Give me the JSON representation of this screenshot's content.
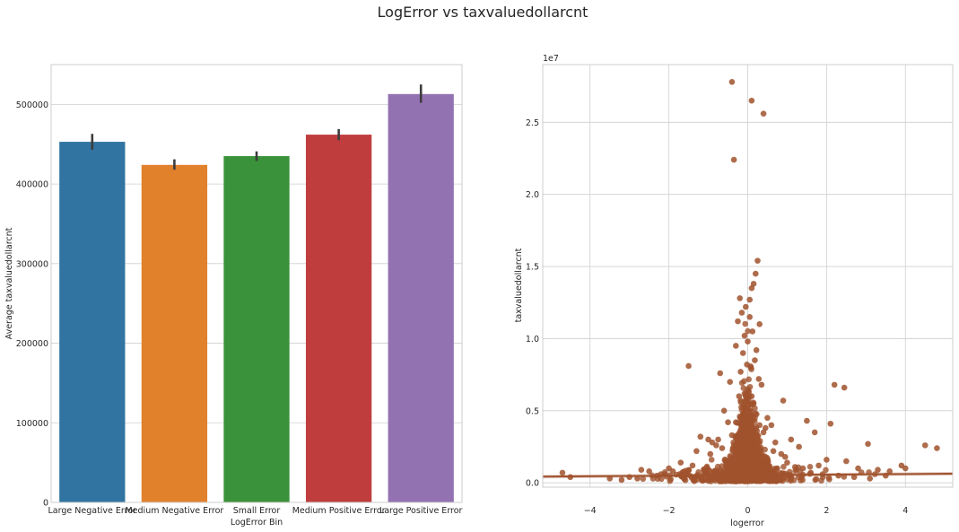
{
  "figure": {
    "title": "LogError vs taxvaluedollarcnt"
  },
  "chart_data": [
    {
      "type": "bar",
      "title": "",
      "xlabel": "LogError Bin",
      "ylabel": "Average taxvaluedollarcnt",
      "categories": [
        "Large Negative Error",
        "Medium Negative Error",
        "Small Error",
        "Medium Positive Error",
        "Large Positive Error"
      ],
      "values": [
        453000,
        424000,
        435000,
        462000,
        513000
      ],
      "error_low": [
        443000,
        418000,
        429000,
        455000,
        502000
      ],
      "error_high": [
        463000,
        431000,
        441000,
        469000,
        525000
      ],
      "colors": [
        "#3274a1",
        "#e1812c",
        "#3a923a",
        "#c03d3e",
        "#9372b2"
      ],
      "ylim": [
        0,
        550000
      ],
      "yticks": [
        0,
        100000,
        200000,
        300000,
        400000,
        500000
      ],
      "ytick_labels": [
        "0",
        "100000",
        "200000",
        "300000",
        "400000",
        "500000"
      ],
      "grid": true
    },
    {
      "type": "scatter",
      "title": "",
      "xlabel": "logerror",
      "ylabel": "taxvaluedollarcnt",
      "y_offset_label": "1e7",
      "xlim": [
        -5.2,
        5.2
      ],
      "ylim": [
        -0.03,
        2.9
      ],
      "xticks": [
        -4,
        -2,
        0,
        2,
        4
      ],
      "xtick_labels": [
        "−4",
        "−2",
        "0",
        "2",
        "4"
      ],
      "yticks": [
        0.0,
        0.5,
        1.0,
        1.5,
        2.0,
        2.5
      ],
      "ytick_labels": [
        "0.0",
        "0.5",
        "1.0",
        "1.5",
        "2.0",
        "2.5"
      ],
      "point_color": "#a0522d",
      "line_color": "#a0522d",
      "grid": true,
      "regression": {
        "x": [
          -5.2,
          5.2
        ],
        "y": [
          0.043,
          0.063
        ]
      },
      "x": [
        -0.4,
        0.1,
        0.4,
        -0.35,
        0.25,
        0.2,
        0.15,
        0.1,
        -0.2,
        0.05,
        -0.05,
        -0.15,
        0.05,
        -0.25,
        0.3,
        0.12,
        -0.08,
        0.0,
        -0.3,
        0.22,
        -0.12,
        0.18,
        -0.02,
        0.08,
        -0.18,
        0.28,
        -0.45,
        0.35,
        -0.22,
        0.02,
        -1.5,
        -0.7,
        2.2,
        2.45,
        0.9,
        -1.2,
        1.5,
        2.1,
        1.7,
        -1.0,
        0.5,
        -0.6,
        0.6,
        -0.5,
        0.45,
        -0.9,
        1.1,
        -0.8,
        1.3,
        -1.3,
        0.7,
        -0.75,
        0.85,
        3.05,
        4.5,
        4.8,
        3.9,
        4.0,
        3.3,
        3.6,
        2.8,
        2.5,
        2.0,
        1.8,
        1.2,
        -1.7,
        -2.0,
        -2.3,
        -2.5,
        -2.7,
        -3.0,
        -3.5,
        -4.5,
        -4.7,
        -2.1,
        -1.9,
        -1.4,
        -1.1,
        1.0,
        1.4,
        1.9,
        2.3,
        2.7,
        3.1,
        3.5,
        -3.2,
        -2.8,
        -2.2,
        -1.6,
        1.6,
        0.95,
        -0.95,
        0.65,
        -0.65,
        0.4,
        -0.4,
        0.3,
        -0.3,
        0.2,
        -0.2,
        0.15,
        -0.1,
        0.1,
        0.0,
        0.05,
        -0.05,
        0.25,
        -0.25,
        0.5,
        -0.55,
        0.75,
        -0.85,
        1.05,
        -1.05,
        0.35,
        -0.35,
        0.12,
        -0.12
      ],
      "y": [
        2.78,
        2.65,
        2.56,
        2.24,
        1.54,
        1.45,
        1.38,
        1.35,
        1.28,
        1.27,
        1.22,
        1.18,
        1.15,
        1.12,
        1.1,
        1.05,
        1.02,
        0.98,
        0.95,
        0.92,
        0.9,
        0.85,
        0.82,
        0.8,
        0.77,
        0.72,
        0.7,
        0.68,
        0.6,
        0.58,
        0.81,
        0.76,
        0.68,
        0.66,
        0.57,
        0.32,
        0.43,
        0.41,
        0.35,
        0.3,
        0.45,
        0.5,
        0.4,
        0.42,
        0.38,
        0.28,
        0.3,
        0.26,
        0.25,
        0.22,
        0.28,
        0.3,
        0.2,
        0.27,
        0.26,
        0.24,
        0.12,
        0.1,
        0.09,
        0.08,
        0.1,
        0.15,
        0.16,
        0.12,
        0.11,
        0.14,
        0.1,
        0.05,
        0.08,
        0.09,
        0.04,
        0.03,
        0.04,
        0.07,
        0.06,
        0.08,
        0.12,
        0.09,
        0.14,
        0.1,
        0.06,
        0.05,
        0.04,
        0.03,
        0.05,
        0.02,
        0.03,
        0.06,
        0.04,
        0.07,
        0.18,
        0.2,
        0.22,
        0.24,
        0.35,
        0.33,
        0.4,
        0.42,
        0.48,
        0.46,
        0.55,
        0.52,
        0.6,
        0.65,
        0.5,
        0.45,
        0.3,
        0.28,
        0.15,
        0.12,
        0.1,
        0.08,
        0.05,
        0.06,
        0.2,
        0.22,
        0.35,
        0.32
      ]
    }
  ]
}
